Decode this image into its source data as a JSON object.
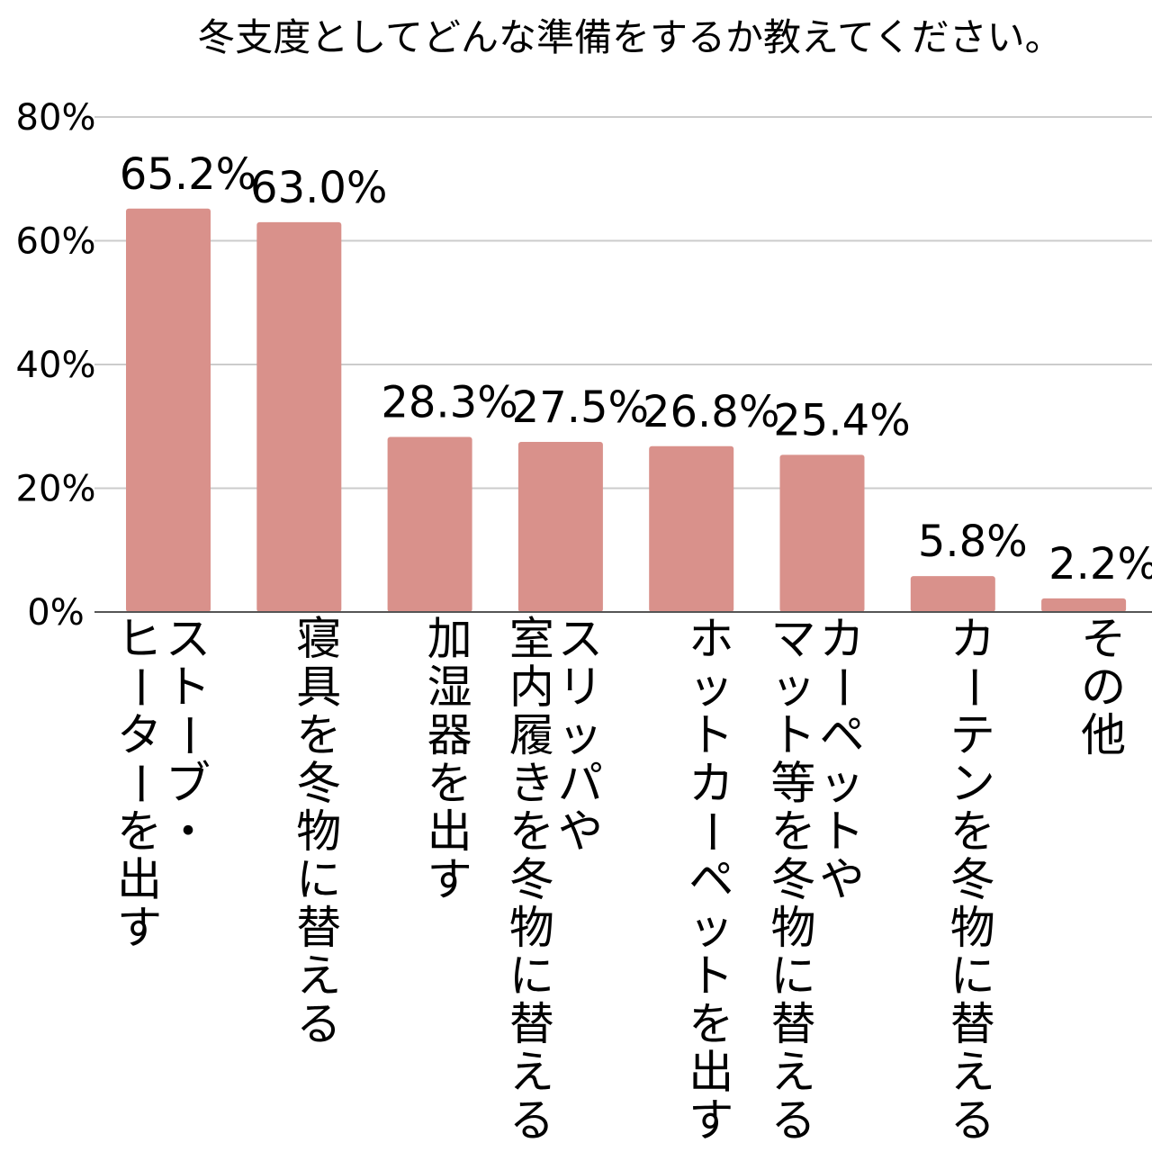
{
  "chart_data": {
    "type": "bar",
    "title": "冬支度としてどんな準備をするか教えてください。",
    "xlabel": "",
    "ylabel": "",
    "ylim": [
      0,
      80
    ],
    "yticks": [
      0,
      20,
      40,
      60,
      80
    ],
    "ytick_labels": [
      "0%",
      "20%",
      "40%",
      "60%",
      "80%"
    ],
    "grid": true,
    "legend": "none",
    "bar_color": "#d9918b",
    "categories": [
      [
        "ストーブ・",
        "ヒーターを出す"
      ],
      [
        "寝具を冬物に替える"
      ],
      [
        "加湿器を出す"
      ],
      [
        "スリッパや",
        "室内履きを冬物に替える"
      ],
      [
        "ホットカーペットを出す"
      ],
      [
        "カーペットや",
        "マット等を冬物に替える"
      ],
      [
        "カーテンを冬物に替える"
      ],
      [
        "その他"
      ]
    ],
    "values": [
      65.2,
      63.0,
      28.3,
      27.5,
      26.8,
      25.4,
      5.8,
      2.2
    ],
    "value_labels": [
      "65.2%",
      "63.0%",
      "28.3%",
      "27.5%",
      "26.8%",
      "25.4%",
      "5.8%",
      "2.2%"
    ]
  }
}
